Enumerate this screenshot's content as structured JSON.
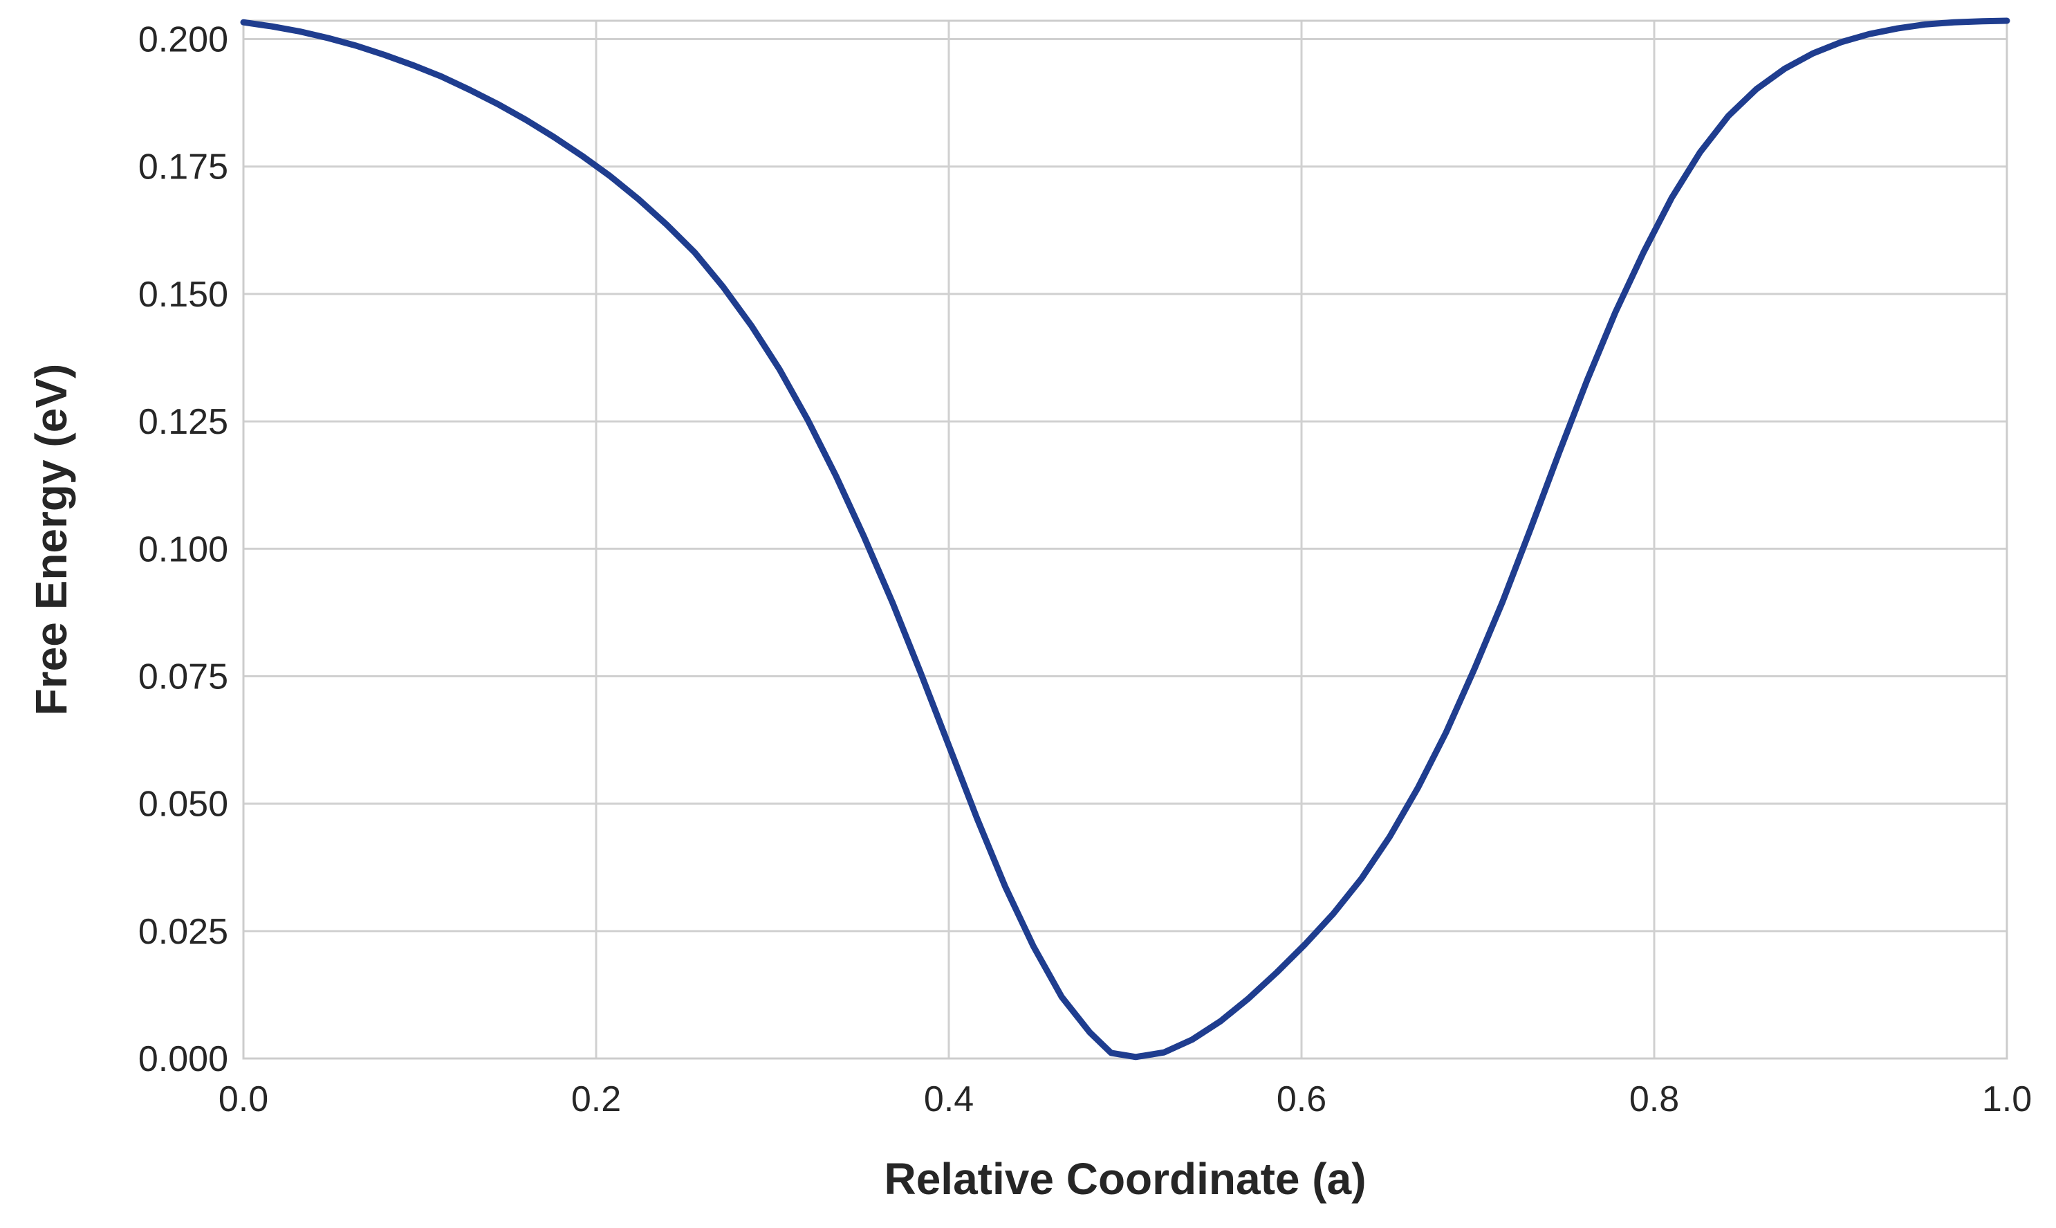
{
  "chart_data": {
    "type": "line",
    "title": "",
    "xlabel": "Relative Coordinate (a)",
    "ylabel": "Free Energy (eV)",
    "xlim": [
      0.0,
      1.0
    ],
    "ylim": [
      0.0,
      0.2036
    ],
    "grid": true,
    "x_ticks": [
      "0.0",
      "0.2",
      "0.4",
      "0.6",
      "0.8",
      "1.0"
    ],
    "y_ticks": [
      "0.000",
      "0.025",
      "0.050",
      "0.075",
      "0.100",
      "0.125",
      "0.150",
      "0.175",
      "0.200"
    ],
    "line_color": "#1f3d8f",
    "grid_color": "#d0d0d0",
    "series": [
      {
        "x": [
          0.0,
          0.016,
          0.032,
          0.048,
          0.064,
          0.08,
          0.096,
          0.112,
          0.128,
          0.144,
          0.16,
          0.176,
          0.192,
          0.208,
          0.224,
          0.24,
          0.256,
          0.272,
          0.288,
          0.304,
          0.32,
          0.336,
          0.352,
          0.368,
          0.384,
          0.4,
          0.416,
          0.432,
          0.448,
          0.464,
          0.48,
          0.492,
          0.506,
          0.522,
          0.538,
          0.554,
          0.57,
          0.586,
          0.602,
          0.618,
          0.634,
          0.65,
          0.666,
          0.682,
          0.698,
          0.714,
          0.73,
          0.746,
          0.762,
          0.778,
          0.794,
          0.81,
          0.826,
          0.842,
          0.858,
          0.874,
          0.89,
          0.906,
          0.922,
          0.938,
          0.954,
          0.97,
          0.986,
          1.0
        ],
        "y": [
          0.2033,
          0.2025,
          0.2015,
          0.2002,
          0.1987,
          0.1969,
          0.1949,
          0.1927,
          0.1901,
          0.1873,
          0.1842,
          0.1808,
          0.1771,
          0.1731,
          0.1686,
          0.1636,
          0.1581,
          0.1514,
          0.1438,
          0.1352,
          0.1253,
          0.1143,
          0.1023,
          0.0895,
          0.0757,
          0.0614,
          0.0471,
          0.0337,
          0.022,
          0.0121,
          0.0051,
          0.0011,
          0.0003,
          0.0012,
          0.0037,
          0.0073,
          0.0118,
          0.0169,
          0.0224,
          0.0284,
          0.0353,
          0.0435,
          0.0531,
          0.064,
          0.0764,
          0.0896,
          0.104,
          0.1188,
          0.1331,
          0.1464,
          0.1582,
          0.1689,
          0.1778,
          0.1849,
          0.1902,
          0.1942,
          0.1972,
          0.1994,
          0.201,
          0.2021,
          0.2029,
          0.2033,
          0.2035,
          0.2036
        ]
      }
    ]
  }
}
